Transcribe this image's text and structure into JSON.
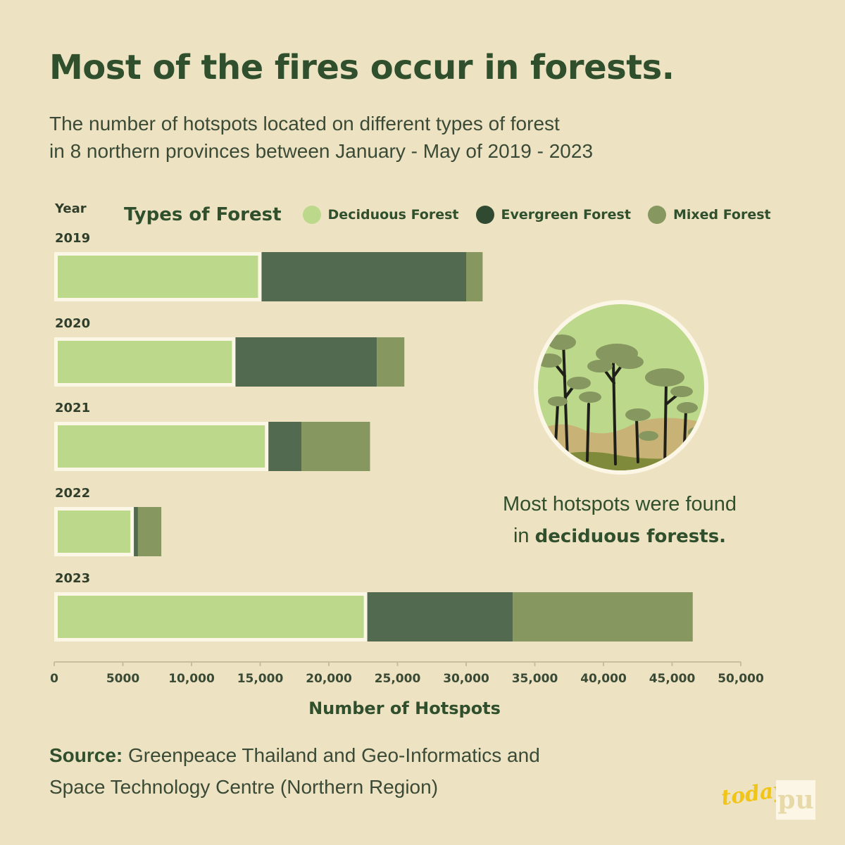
{
  "title": "Most of the fires occur in forests.",
  "subtitle_line1": "The number of hotspots located on different types of forest",
  "subtitle_line2": "in 8 northern provinces between January - May of 2019 - 2023",
  "year_header": "Year",
  "legend_title": "Types of Forest",
  "colors": {
    "deciduous": "#bcd88a",
    "evergreen": "#516a50",
    "mixed": "#869760",
    "background": "#ede3c2",
    "text": "#2f4f2d"
  },
  "note": {
    "line1": "Most hotspots were found",
    "prefix": "in ",
    "bold": "deciduous forests."
  },
  "source": {
    "label": "Source:",
    "text": " Greenpeace Thailand and Geo-Informatics and Space Technology Centre (Northern Region)"
  },
  "branding": {
    "today": "today",
    "pu": "pu"
  },
  "chart_data": {
    "type": "bar",
    "orientation": "horizontal",
    "stacked": true,
    "categories": [
      "2019",
      "2020",
      "2021",
      "2022",
      "2023"
    ],
    "series": [
      {
        "name": "Deciduous Forest",
        "values": [
          15100,
          13200,
          15600,
          5800,
          22800
        ]
      },
      {
        "name": "Evergreen Forest",
        "values": [
          14900,
          10300,
          2400,
          300,
          10600
        ]
      },
      {
        "name": "Mixed Forest",
        "values": [
          1200,
          2000,
          5000,
          1700,
          13100
        ]
      }
    ],
    "xlabel": "Number of Hotspots",
    "xlim": [
      0,
      50000
    ],
    "xticks": [
      0,
      5000,
      10000,
      15000,
      20000,
      25000,
      30000,
      35000,
      40000,
      45000,
      50000
    ],
    "xtick_labels": [
      "0",
      "5000",
      "10,000",
      "15,000",
      "20,000",
      "25,000",
      "30,000",
      "35,000",
      "40,000",
      "45,000",
      "50,000"
    ],
    "grid": false,
    "legend": "top"
  }
}
